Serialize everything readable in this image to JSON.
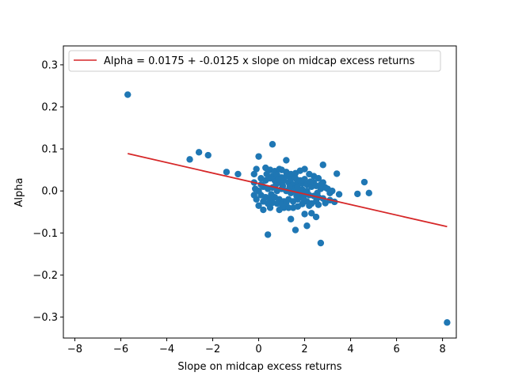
{
  "chart_data": {
    "type": "scatter",
    "xlabel": "Slope on midcap excess returns",
    "ylabel": "Alpha",
    "xlim": [
      -8.5,
      8.6
    ],
    "ylim": [
      -0.35,
      0.345
    ],
    "xticks": [
      -8,
      -6,
      -4,
      -2,
      0,
      2,
      4,
      6,
      8
    ],
    "yticks": [
      -0.3,
      -0.2,
      -0.1,
      0.0,
      0.1,
      0.2,
      0.3
    ],
    "xtick_labels": [
      "−8",
      "−6",
      "−4",
      "−2",
      "0",
      "2",
      "4",
      "6",
      "8"
    ],
    "ytick_labels": [
      "−0.3",
      "−0.2",
      "−0.1",
      "0.0",
      "0.1",
      "0.2",
      "0.3"
    ],
    "grid": false,
    "legend_position": "top-left",
    "colors": {
      "points": "#1f77b4",
      "fit_line": "#d62728",
      "axes": "#000000"
    },
    "series": [
      {
        "kind": "scatter",
        "points": [
          [
            -5.7,
            0.229
          ],
          [
            8.2,
            -0.313
          ],
          [
            -3.0,
            0.075
          ],
          [
            -2.6,
            0.092
          ],
          [
            -2.2,
            0.085
          ],
          [
            -1.4,
            0.045
          ],
          [
            -0.9,
            0.04
          ],
          [
            0.6,
            0.111
          ],
          [
            0.0,
            0.082
          ],
          [
            1.2,
            0.073
          ],
          [
            2.8,
            0.062
          ],
          [
            3.4,
            0.041
          ],
          [
            4.6,
            0.021
          ],
          [
            4.3,
            -0.007
          ],
          [
            4.8,
            -0.005
          ],
          [
            3.5,
            -0.008
          ],
          [
            3.3,
            -0.026
          ],
          [
            2.7,
            -0.124
          ],
          [
            0.4,
            -0.104
          ],
          [
            1.6,
            -0.093
          ],
          [
            2.1,
            -0.083
          ],
          [
            2.5,
            -0.062
          ],
          [
            1.4,
            -0.067
          ],
          [
            2.0,
            -0.055
          ],
          [
            2.3,
            -0.053
          ],
          [
            0.2,
            -0.045
          ],
          [
            0.5,
            -0.04
          ],
          [
            0.9,
            -0.045
          ],
          [
            1.1,
            -0.04
          ],
          [
            1.3,
            -0.04
          ],
          [
            1.5,
            -0.04
          ],
          [
            1.7,
            -0.037
          ],
          [
            1.9,
            -0.031
          ],
          [
            2.2,
            -0.035
          ],
          [
            2.6,
            -0.033
          ],
          [
            2.9,
            -0.029
          ],
          [
            3.1,
            -0.022
          ],
          [
            0.0,
            -0.035
          ],
          [
            -0.1,
            -0.02
          ],
          [
            -0.2,
            -0.01
          ],
          [
            -0.15,
            0.005
          ],
          [
            -0.2,
            0.02
          ],
          [
            -0.2,
            0.04
          ],
          [
            -0.1,
            0.052
          ],
          [
            0.3,
            0.055
          ],
          [
            0.5,
            0.05
          ],
          [
            0.7,
            0.047
          ],
          [
            0.9,
            0.052
          ],
          [
            1.0,
            0.05
          ],
          [
            1.2,
            0.045
          ],
          [
            1.4,
            0.04
          ],
          [
            1.6,
            0.042
          ],
          [
            1.8,
            0.048
          ],
          [
            2.0,
            0.052
          ],
          [
            2.2,
            0.04
          ],
          [
            2.4,
            0.035
          ],
          [
            2.6,
            0.03
          ],
          [
            2.8,
            0.02
          ],
          [
            3.0,
            0.005
          ],
          [
            3.1,
            -0.005
          ],
          [
            0.1,
            0.03
          ],
          [
            0.3,
            0.025
          ],
          [
            0.5,
            0.03
          ],
          [
            0.7,
            0.025
          ],
          [
            0.9,
            0.02
          ],
          [
            1.1,
            0.025
          ],
          [
            1.3,
            0.02
          ],
          [
            1.5,
            0.015
          ],
          [
            1.7,
            0.02
          ],
          [
            1.9,
            0.018
          ],
          [
            2.1,
            0.015
          ],
          [
            2.3,
            0.01
          ],
          [
            2.5,
            0.012
          ],
          [
            2.7,
            0.005
          ],
          [
            2.9,
            0.008
          ],
          [
            0.2,
            0.01
          ],
          [
            0.4,
            0.005
          ],
          [
            0.6,
            0.008
          ],
          [
            0.8,
            0.0
          ],
          [
            1.0,
            0.005
          ],
          [
            1.2,
            0.0
          ],
          [
            1.4,
            -0.005
          ],
          [
            1.6,
            0.0
          ],
          [
            1.8,
            -0.005
          ],
          [
            2.0,
            -0.008
          ],
          [
            2.2,
            -0.01
          ],
          [
            2.4,
            -0.012
          ],
          [
            2.6,
            -0.015
          ],
          [
            2.8,
            -0.018
          ],
          [
            0.1,
            -0.01
          ],
          [
            0.3,
            -0.015
          ],
          [
            0.5,
            -0.02
          ],
          [
            0.7,
            -0.015
          ],
          [
            0.9,
            -0.02
          ],
          [
            1.1,
            -0.025
          ],
          [
            1.3,
            -0.02
          ],
          [
            1.5,
            -0.025
          ],
          [
            1.7,
            -0.02
          ],
          [
            1.9,
            -0.015
          ],
          [
            2.1,
            -0.025
          ],
          [
            2.3,
            -0.03
          ],
          [
            2.5,
            -0.025
          ],
          [
            0.6,
            0.035
          ],
          [
            0.8,
            0.038
          ],
          [
            1.0,
            0.032
          ],
          [
            1.2,
            0.035
          ],
          [
            1.4,
            0.028
          ],
          [
            1.6,
            0.03
          ],
          [
            1.8,
            0.025
          ],
          [
            2.0,
            0.028
          ],
          [
            0.4,
            -0.03
          ],
          [
            0.6,
            -0.028
          ],
          [
            0.8,
            -0.03
          ],
          [
            1.0,
            -0.032
          ],
          [
            1.2,
            -0.028
          ],
          [
            0.0,
            0.0
          ],
          [
            0.1,
            0.015
          ],
          [
            0.2,
            -0.025
          ],
          [
            1.5,
            0.005
          ],
          [
            1.7,
            0.008
          ],
          [
            1.9,
            0.003
          ],
          [
            2.1,
            0.0
          ],
          [
            2.4,
            0.02
          ],
          [
            2.7,
            0.015
          ],
          [
            3.2,
            0.0
          ],
          [
            0.35,
            0.04
          ],
          [
            0.75,
            0.015
          ],
          [
            1.05,
            0.012
          ],
          [
            1.35,
            0.01
          ],
          [
            1.65,
            -0.012
          ],
          [
            1.95,
            -0.018
          ],
          [
            2.25,
            0.022
          ],
          [
            2.55,
            -0.005
          ],
          [
            0.55,
            -0.008
          ],
          [
            0.85,
            0.028
          ]
        ]
      },
      {
        "kind": "line",
        "name": "Alpha = 0.0175 + -0.0125 x slope on midcap excess returns",
        "intercept": 0.0175,
        "slope": -0.0125,
        "x_range": [
          -5.7,
          8.2
        ]
      }
    ]
  }
}
